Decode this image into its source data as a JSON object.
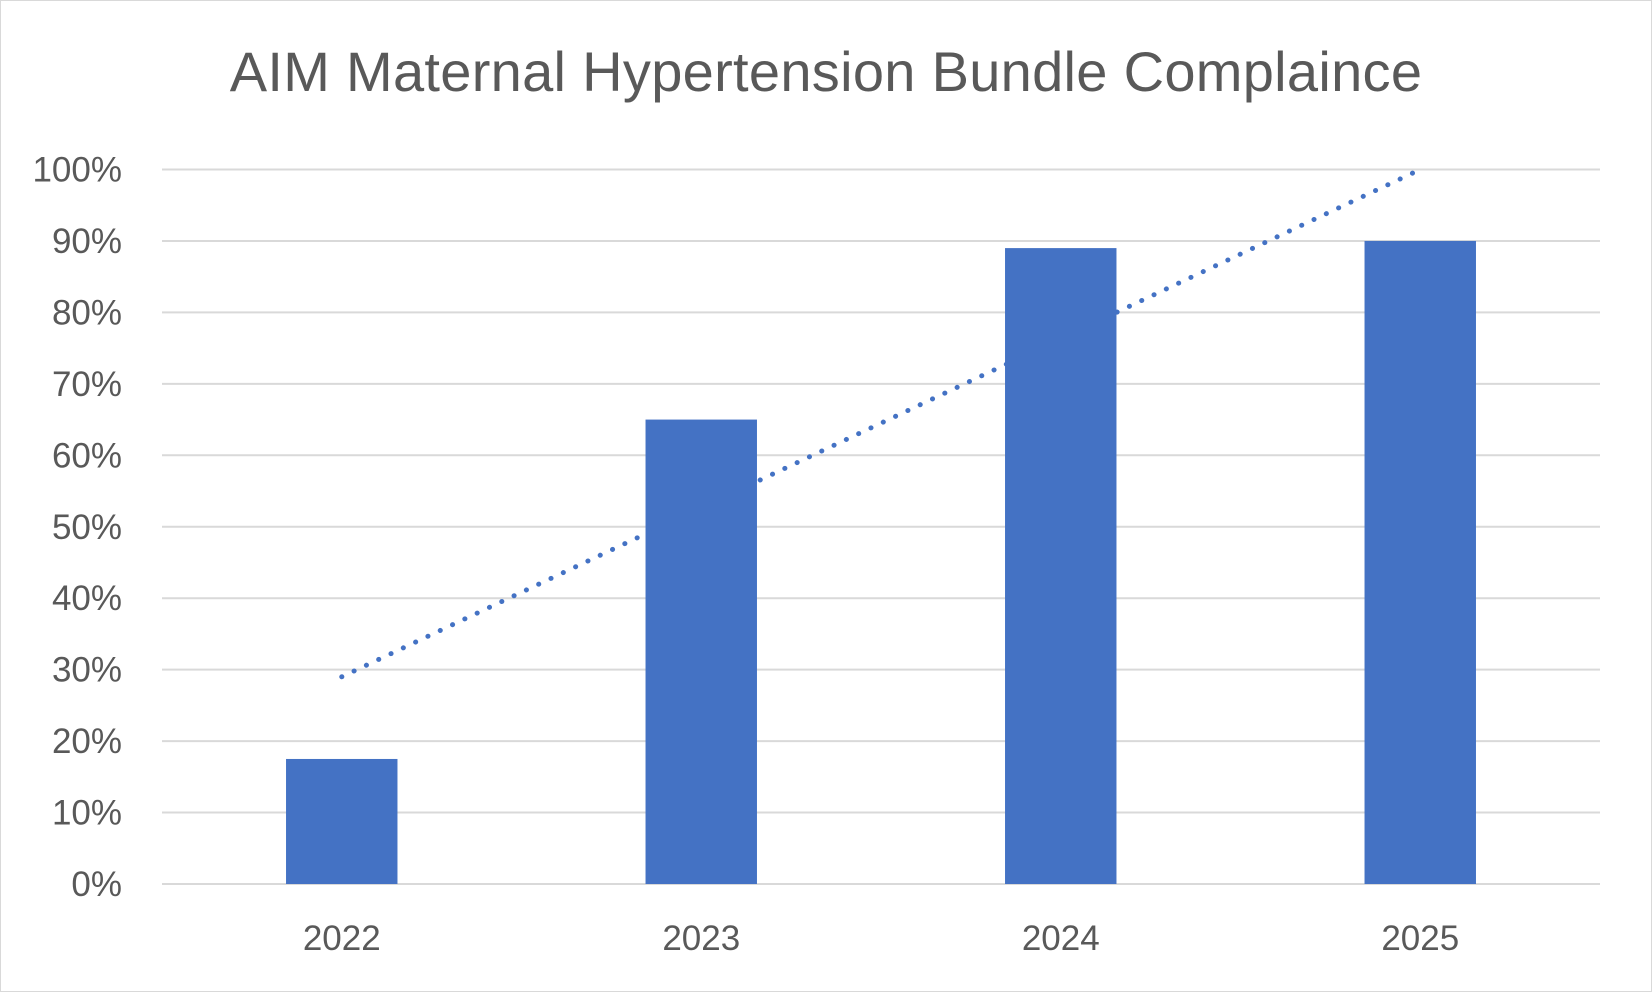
{
  "chart_data": {
    "type": "bar",
    "title": "AIM Maternal Hypertension Bundle Complaince",
    "categories": [
      "2022",
      "2023",
      "2024",
      "2025"
    ],
    "values": [
      17.5,
      65,
      89,
      90
    ],
    "value_unit": "%",
    "ylim": [
      0,
      100
    ],
    "y_ticks": [
      "0%",
      "10%",
      "20%",
      "30%",
      "40%",
      "50%",
      "60%",
      "70%",
      "80%",
      "90%",
      "100%"
    ],
    "xlabel": "",
    "ylabel": "",
    "grid": true,
    "legend": "none",
    "trendline": {
      "type": "linear",
      "style": "dotted",
      "start_value": 29,
      "end_value": 100
    },
    "colors": {
      "bar": "#4472C4",
      "trendline": "#4472C4",
      "grid": "#d9d9d9",
      "text": "#595959"
    }
  }
}
